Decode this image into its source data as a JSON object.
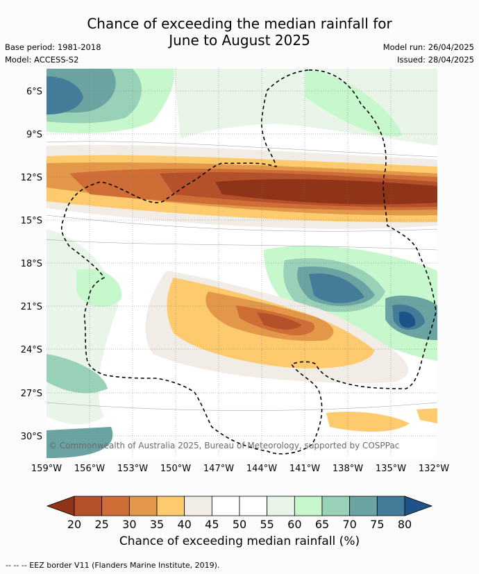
{
  "title_line1": "Chance of exceeding the median rainfall for",
  "title_line2": "June to August 2025",
  "base_period": "Base period: 1981-2018",
  "model": "Model: ACCESS-S2",
  "model_run": "Model run: 26/04/2025",
  "issued": "Issued: 28/04/2025",
  "lat_labels": [
    "6°S",
    "9°S",
    "12°S",
    "15°S",
    "18°S",
    "21°S",
    "24°S",
    "27°S",
    "30°S"
  ],
  "lon_labels": [
    "159°W",
    "156°W",
    "153°W",
    "150°W",
    "147°W",
    "144°W",
    "141°W",
    "138°W",
    "135°W",
    "132°W"
  ],
  "copyright": "© Commonwealth of Australia 2025, Bureau of Meteorology, supported by COSPPac",
  "colorbar": {
    "ticks": [
      "20",
      "25",
      "30",
      "35",
      "40",
      "45",
      "50",
      "55",
      "60",
      "65",
      "70",
      "75",
      "80"
    ],
    "colors": [
      "#8f3418",
      "#b4502a",
      "#cf6d36",
      "#e29749",
      "#fdca6e",
      "#f1ece6",
      "#ffffff",
      "#ffffff",
      "#eaf5ea",
      "#c6f7cd",
      "#99d0b8",
      "#6aa3a1",
      "#447b98",
      "#1d5386"
    ],
    "label": "Chance of exceeding median rainfall (%)"
  },
  "footer": "--  --  -- EEZ border V11 (Flanders Marine Institute, 2019)."
}
